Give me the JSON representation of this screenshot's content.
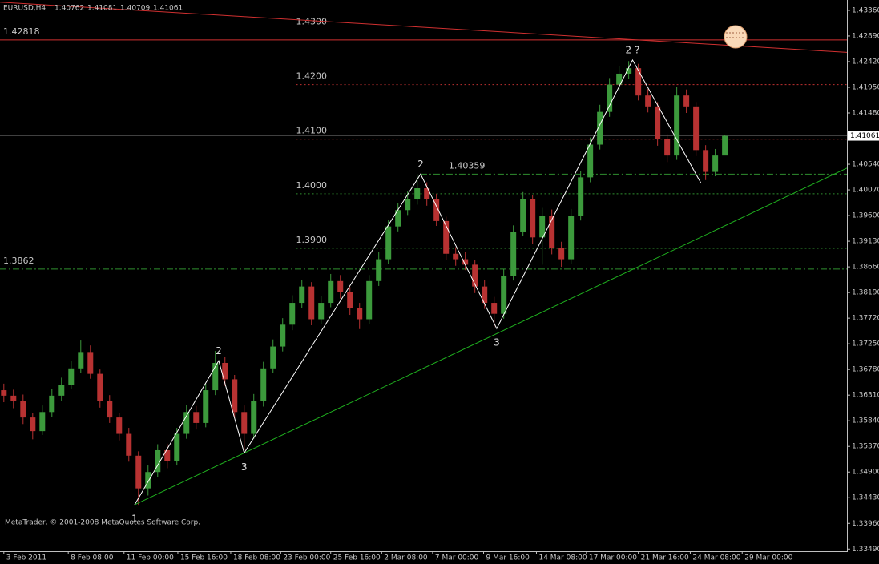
{
  "chart_data": {
    "type": "candlestick",
    "symbol": "EURUSD,H4",
    "header_prices": [
      1.40762,
      1.41081,
      1.40709,
      1.41061
    ],
    "bid": 1.41061,
    "copyright": "MetaTrader, © 2001-2008 MetaQuotes Software Corp.",
    "up_color": "#3c9a3c",
    "down_color": "#b83232",
    "x": [
      0,
      1,
      2,
      3,
      4,
      5,
      6,
      7,
      8,
      9,
      10,
      11,
      12,
      13,
      14,
      15,
      16,
      17,
      18,
      19,
      20,
      21,
      22,
      23,
      24,
      25,
      26,
      27,
      28,
      29,
      30,
      31,
      32,
      33,
      34,
      35,
      36,
      37,
      38,
      39,
      40,
      41,
      42,
      43,
      44,
      45,
      46,
      47,
      48,
      49,
      50,
      51,
      52,
      53,
      54,
      55,
      56,
      57,
      58,
      59,
      60,
      61,
      62,
      63,
      64,
      65,
      66,
      67,
      68,
      69,
      70,
      71,
      72,
      73,
      74,
      75
    ],
    "open": [
      1.364,
      1.363,
      1.362,
      1.359,
      1.3565,
      1.36,
      1.363,
      1.365,
      1.368,
      1.371,
      1.367,
      1.362,
      1.359,
      1.356,
      1.352,
      1.346,
      1.349,
      1.353,
      1.351,
      1.356,
      1.36,
      1.358,
      1.364,
      1.369,
      1.366,
      1.36,
      1.356,
      1.362,
      1.368,
      1.372,
      1.376,
      1.38,
      1.383,
      1.377,
      1.38,
      1.384,
      1.382,
      1.379,
      1.377,
      1.384,
      1.388,
      1.394,
      1.397,
      1.399,
      1.401,
      1.399,
      1.395,
      1.389,
      1.388,
      1.387,
      1.383,
      1.38,
      1.378,
      1.385,
      1.393,
      1.399,
      1.392,
      1.396,
      1.39,
      1.388,
      1.396,
      1.403,
      1.409,
      1.415,
      1.42,
      1.422,
      1.423,
      1.418,
      1.416,
      1.41,
      1.407,
      1.418,
      1.416,
      1.408,
      1.404,
      1.407
    ],
    "high": [
      1.3652,
      1.3641,
      1.3632,
      1.3598,
      1.3612,
      1.3642,
      1.3663,
      1.3694,
      1.3731,
      1.3722,
      1.3678,
      1.3631,
      1.3598,
      1.3571,
      1.3528,
      1.3502,
      1.3541,
      1.3542,
      1.3571,
      1.3613,
      1.3611,
      1.3652,
      1.3712,
      1.3701,
      1.3668,
      1.3612,
      1.3633,
      1.3692,
      1.3733,
      1.3772,
      1.3814,
      1.3842,
      1.3838,
      1.3812,
      1.3853,
      1.3851,
      1.3829,
      1.38,
      1.3851,
      1.3893,
      1.3952,
      1.3983,
      1.4004,
      1.4036,
      1.4021,
      1.4,
      1.3958,
      1.3902,
      1.3893,
      1.3879,
      1.3842,
      1.3811,
      1.3862,
      1.3942,
      1.4003,
      1.3998,
      1.3974,
      1.3971,
      1.3912,
      1.3972,
      1.4042,
      1.4103,
      1.4163,
      1.4212,
      1.4234,
      1.4243,
      1.4238,
      1.4192,
      1.4168,
      1.4109,
      1.4195,
      1.4191,
      1.4168,
      1.4089,
      1.4082,
      1.4108
    ],
    "low": [
      1.3618,
      1.3607,
      1.3578,
      1.355,
      1.3558,
      1.3591,
      1.3621,
      1.3642,
      1.3672,
      1.3661,
      1.3608,
      1.358,
      1.3548,
      1.3509,
      1.343,
      1.3447,
      1.3481,
      1.3497,
      1.3502,
      1.3551,
      1.3568,
      1.3572,
      1.3631,
      1.3648,
      1.3589,
      1.353,
      1.3551,
      1.361,
      1.3671,
      1.3711,
      1.375,
      1.3791,
      1.3759,
      1.3761,
      1.3792,
      1.3808,
      1.3778,
      1.3752,
      1.3762,
      1.3831,
      1.3871,
      1.3931,
      1.3961,
      1.398,
      1.3978,
      1.3941,
      1.3878,
      1.3868,
      1.386,
      1.3818,
      1.3789,
      1.3755,
      1.3771,
      1.3841,
      1.3922,
      1.3908,
      1.387,
      1.3889,
      1.3866,
      1.3871,
      1.3951,
      1.4021,
      1.4081,
      1.4141,
      1.4189,
      1.421,
      1.4171,
      1.4149,
      1.4088,
      1.4058,
      1.4062,
      1.4148,
      1.4069,
      1.4025,
      1.4032,
      1.4071
    ],
    "close": [
      1.363,
      1.362,
      1.359,
      1.3565,
      1.36,
      1.363,
      1.365,
      1.368,
      1.371,
      1.367,
      1.362,
      1.359,
      1.356,
      1.352,
      1.346,
      1.349,
      1.353,
      1.351,
      1.356,
      1.36,
      1.358,
      1.364,
      1.369,
      1.366,
      1.36,
      1.356,
      1.362,
      1.368,
      1.372,
      1.376,
      1.38,
      1.383,
      1.377,
      1.38,
      1.384,
      1.382,
      1.379,
      1.377,
      1.384,
      1.388,
      1.394,
      1.397,
      1.399,
      1.401,
      1.399,
      1.395,
      1.389,
      1.388,
      1.387,
      1.383,
      1.38,
      1.378,
      1.385,
      1.393,
      1.399,
      1.392,
      1.396,
      1.39,
      1.388,
      1.396,
      1.403,
      1.409,
      1.415,
      1.42,
      1.422,
      1.423,
      1.418,
      1.416,
      1.41,
      1.407,
      1.418,
      1.416,
      1.408,
      1.404,
      1.407,
      1.4106
    ],
    "xlim": [
      -0.4,
      87.7
    ],
    "ylim": [
      1.3345,
      1.4355
    ],
    "yticks": [
      {
        "value": 1.3349,
        "label": "1.33490"
      },
      {
        "value": 1.3396,
        "label": "1.33960"
      },
      {
        "value": 1.3443,
        "label": "1.34430"
      },
      {
        "value": 1.349,
        "label": "1.34900"
      },
      {
        "value": 1.3537,
        "label": "1.35370"
      },
      {
        "value": 1.3584,
        "label": "1.35840"
      },
      {
        "value": 1.3631,
        "label": "1.36310"
      },
      {
        "value": 1.3678,
        "label": "1.36780"
      },
      {
        "value": 1.3725,
        "label": "1.37250"
      },
      {
        "value": 1.3772,
        "label": "1.37720"
      },
      {
        "value": 1.3819,
        "label": "1.38190"
      },
      {
        "value": 1.3866,
        "label": "1.38660"
      },
      {
        "value": 1.3913,
        "label": "1.39130"
      },
      {
        "value": 1.396,
        "label": "1.39600"
      },
      {
        "value": 1.4007,
        "label": "1.40070"
      },
      {
        "value": 1.4054,
        "label": "1.40540"
      },
      {
        "value": 1.4148,
        "label": "1.41480"
      },
      {
        "value": 1.4195,
        "label": "1.41950"
      },
      {
        "value": 1.4242,
        "label": "1.42420"
      },
      {
        "value": 1.4289,
        "label": "1.42890"
      },
      {
        "value": 1.4336,
        "label": "1.43360"
      }
    ],
    "xticks": [
      {
        "value": 0,
        "label": "3 Feb 2011"
      },
      {
        "value": 6.7,
        "label": "8 Feb 08:00"
      },
      {
        "value": 12.5,
        "label": "11 Feb 00:00"
      },
      {
        "value": 18.1,
        "label": "15 Feb 16:00"
      },
      {
        "value": 23.6,
        "label": "18 Feb 08:00"
      },
      {
        "value": 28.8,
        "label": "23 Feb 00:00"
      },
      {
        "value": 34,
        "label": "25 Feb 16:00"
      },
      {
        "value": 39.3,
        "label": "2 Mar 08:00"
      },
      {
        "value": 44.6,
        "label": "7 Mar 00:00"
      },
      {
        "value": 49.9,
        "label": "9 Mar 16:00"
      },
      {
        "value": 55.4,
        "label": "14 Mar 08:00"
      },
      {
        "value": 60.6,
        "label": "17 Mar 00:00"
      },
      {
        "value": 66,
        "label": "21 Mar 16:00"
      },
      {
        "value": 71.4,
        "label": "24 Mar 08:00"
      },
      {
        "value": 76.8,
        "label": "29 Mar 00:00"
      }
    ],
    "levels": [
      {
        "price": {
          "value": 1.43,
          "label": "1.4300"
        },
        "from": 30.4,
        "color": "#c03030",
        "style": "dot"
      },
      {
        "price": {
          "value": 1.42,
          "label": "1.4200"
        },
        "from": 30.4,
        "color": "#c03030",
        "style": "dot"
      },
      {
        "price": {
          "value": 1.41,
          "label": "1.4100"
        },
        "from": 30.4,
        "color": "#c03030",
        "style": "dot"
      },
      {
        "price": {
          "value": 1.4,
          "label": "1.4000"
        },
        "from": 30.4,
        "color": "#2f8f2f",
        "style": "dot"
      },
      {
        "price": {
          "value": 1.39,
          "label": "1.3900"
        },
        "from": 30.4,
        "color": "#2f8f2f",
        "style": "dot"
      },
      {
        "price": 1.40359,
        "from": 43.35,
        "color": "#2f8f2f",
        "style": "dashdot"
      },
      {
        "price": 1.42818,
        "from": -0.4,
        "color": "#d03030",
        "style": "solid"
      },
      {
        "price": 1.3862,
        "from": -0.4,
        "color": "#2f8f2f",
        "style": "dashdot"
      }
    ],
    "trendlines": [
      {
        "color": "#d03030",
        "x": [
          -0.4,
          87.7
        ],
        "y": [
          1.4351,
          1.4259
        ]
      },
      {
        "color": "#1fb01f",
        "x": [
          13.6,
          87.7
        ],
        "y": [
          1.343,
          1.4047
        ]
      }
    ],
    "zigzag": {
      "color": "#ffffff",
      "x": [
        13.6,
        22.35,
        25.0,
        43.35,
        51.27,
        65.4,
        72.5
      ],
      "y": [
        1.343,
        1.3694,
        1.3525,
        1.4036,
        1.3753,
        1.4245,
        1.402
      ],
      "labels": [
        "1",
        "2",
        "3",
        "2",
        "3",
        "2 ?",
        null
      ]
    }
  }
}
